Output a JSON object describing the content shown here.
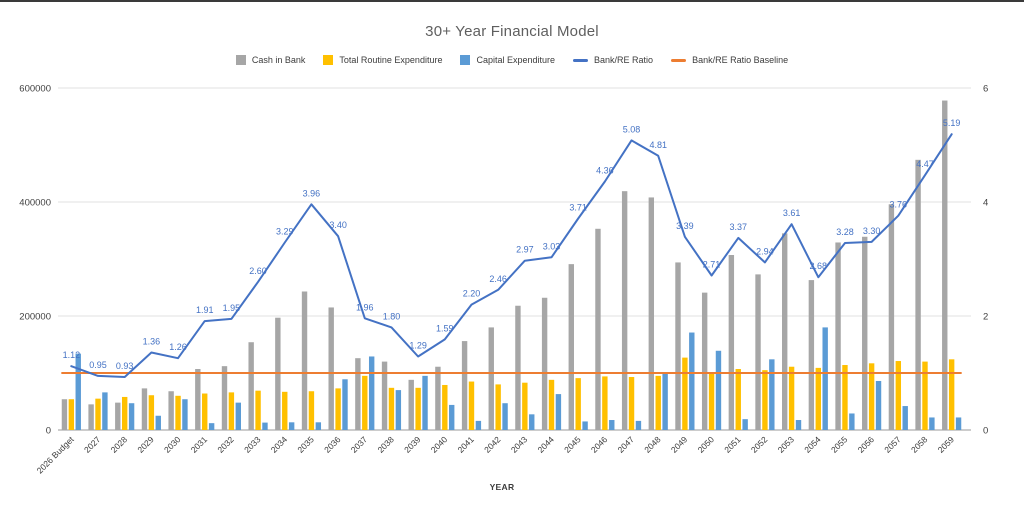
{
  "chart_data": {
    "type": "bar",
    "subtype": "combo-bar-line",
    "title": "30+ Year Financial Model",
    "xlabel": "YEAR",
    "legend_position": "top",
    "grid": true,
    "categories": [
      "2026 Budget",
      "2027",
      "2028",
      "2029",
      "2030",
      "2031",
      "2032",
      "2033",
      "2034",
      "2035",
      "2036",
      "2037",
      "2038",
      "2039",
      "2040",
      "2041",
      "2042",
      "2043",
      "2044",
      "2045",
      "2046",
      "2047",
      "2048",
      "2049",
      "2050",
      "2051",
      "2052",
      "2053",
      "2054",
      "2055",
      "2056",
      "2057",
      "2058",
      "2059"
    ],
    "bar_series": [
      {
        "name": "Cash in Bank",
        "color": "#a6a6a6",
        "axis": "left",
        "values": [
          54000,
          45000,
          48000,
          73000,
          68000,
          107000,
          112000,
          154000,
          197000,
          243000,
          215000,
          126000,
          120000,
          88000,
          111000,
          156000,
          180000,
          218000,
          232000,
          291000,
          353000,
          419000,
          408000,
          294000,
          241000,
          307000,
          273000,
          345000,
          263000,
          329000,
          339000,
          396000,
          474000,
          578000
        ]
      },
      {
        "name": "Total Routine Expenditure",
        "color": "#ffc000",
        "axis": "left",
        "values": [
          54000,
          55000,
          58000,
          61000,
          60000,
          64000,
          66000,
          69000,
          67000,
          68000,
          73000,
          95000,
          74000,
          74000,
          79000,
          85000,
          80000,
          83000,
          88000,
          91000,
          94000,
          93000,
          95000,
          127000,
          99000,
          107000,
          105000,
          111000,
          109000,
          114000,
          117000,
          121000,
          120000,
          124000
        ]
      },
      {
        "name": "Capital Expenditure",
        "color": "#5b9bd5",
        "axis": "left",
        "values": [
          134000,
          66000,
          47000,
          25000,
          54000,
          12000,
          48000,
          13000,
          13500,
          13500,
          89000,
          129000,
          70000,
          95000,
          44000,
          16000,
          47000,
          27500,
          63000,
          15000,
          17500,
          16000,
          99000,
          171000,
          139000,
          19000,
          124000,
          17500,
          180000,
          29000,
          86000,
          42000,
          22000,
          22000
        ]
      }
    ],
    "line_series": [
      {
        "name": "Bank/RE Ratio",
        "color": "#4472c4",
        "axis": "right",
        "data_labels": true,
        "values": [
          1.12,
          0.95,
          0.93,
          1.36,
          1.26,
          1.91,
          1.95,
          2.6,
          3.29,
          3.96,
          3.4,
          1.96,
          1.8,
          1.29,
          1.59,
          2.2,
          2.46,
          2.97,
          3.03,
          3.71,
          4.36,
          5.08,
          4.81,
          3.39,
          2.71,
          3.37,
          2.94,
          3.61,
          2.68,
          3.28,
          3.3,
          3.76,
          4.47,
          5.19
        ]
      },
      {
        "name": "Bank/RE Ratio Baseline",
        "color": "#ed7d31",
        "axis": "right",
        "data_labels": false,
        "constant_value": 1
      }
    ],
    "left_axis": {
      "min": 0,
      "max": 600000,
      "ticks": [
        0,
        200000,
        400000,
        600000
      ],
      "tick_labels": [
        "0",
        "200000",
        "400000",
        "600000"
      ]
    },
    "right_axis": {
      "min": 0,
      "max": 6,
      "ticks": [
        0,
        2,
        4,
        6
      ],
      "tick_labels": [
        "0",
        "2",
        "4",
        "6"
      ]
    }
  },
  "style_colors": {
    "gridline": "#e2e2e2",
    "axis_line": "#9a9a9a",
    "axis_text": "#404040",
    "title_text": "#5f5f5f",
    "top_edge": "#3a3a3a"
  }
}
